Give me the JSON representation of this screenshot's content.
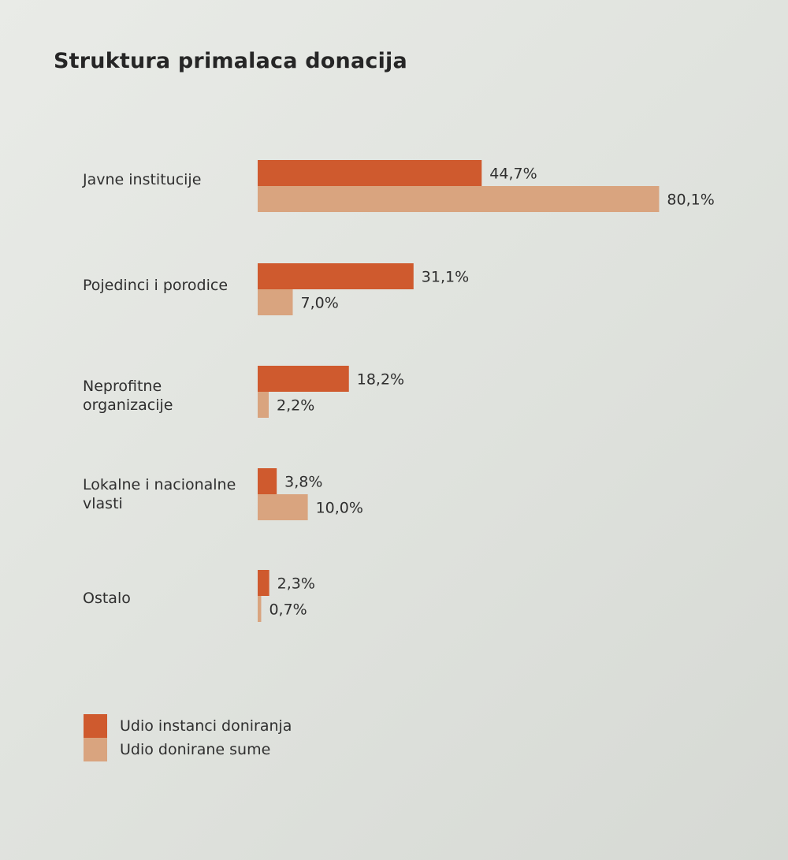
{
  "chart_data": {
    "type": "bar",
    "orientation": "horizontal",
    "title": "Struktura primalaca donacija",
    "categories": [
      "Javne institucije",
      "Pojedinci i porodice",
      "Neprofitne organizacije",
      "Lokalne i nacionalne vlasti",
      "Ostalo"
    ],
    "series": [
      {
        "name": "Udio instanci doniranja",
        "color": "#cf5a2e",
        "values": [
          44.7,
          31.1,
          18.2,
          3.8,
          2.3
        ],
        "labels": [
          "44,7%",
          "31,1%",
          "18,2%",
          "3,8%",
          "2,3%"
        ]
      },
      {
        "name": "Udio donirane sume",
        "color": "#d9a47f",
        "values": [
          80.1,
          7.0,
          2.2,
          10.0,
          0.7
        ],
        "labels": [
          "80,1%",
          "7,0%",
          "2,2%",
          "10,0%",
          "0,7%"
        ]
      }
    ],
    "xlim": [
      0,
      100
    ],
    "grid": false,
    "legend_position": "bottom-left"
  }
}
